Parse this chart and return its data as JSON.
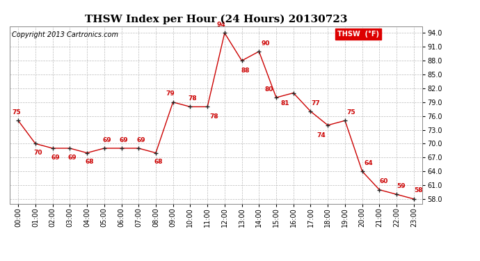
{
  "title": "THSW Index per Hour (24 Hours) 20130723",
  "copyright": "Copyright 2013 Cartronics.com",
  "legend_label": "THSW  (°F)",
  "hours": [
    0,
    1,
    2,
    3,
    4,
    5,
    6,
    7,
    8,
    9,
    10,
    11,
    12,
    13,
    14,
    15,
    16,
    17,
    18,
    19,
    20,
    21,
    22,
    23
  ],
  "x_labels": [
    "00:00",
    "01:00",
    "02:00",
    "03:00",
    "04:00",
    "05:00",
    "06:00",
    "07:00",
    "08:00",
    "09:00",
    "10:00",
    "11:00",
    "12:00",
    "13:00",
    "14:00",
    "15:00",
    "16:00",
    "17:00",
    "18:00",
    "19:00",
    "20:00",
    "21:00",
    "22:00",
    "23:00"
  ],
  "values": [
    75,
    70,
    69,
    69,
    68,
    69,
    69,
    69,
    68,
    79,
    78,
    78,
    94,
    88,
    90,
    80,
    81,
    77,
    74,
    75,
    64,
    60,
    59,
    58
  ],
  "ylim_min": 57.0,
  "ylim_max": 95.5,
  "yticks": [
    58.0,
    61.0,
    64.0,
    67.0,
    70.0,
    73.0,
    76.0,
    79.0,
    82.0,
    85.0,
    88.0,
    91.0,
    94.0
  ],
  "line_color": "#cc0000",
  "marker_color": "#222222",
  "label_color": "#cc0000",
  "grid_color": "#bbbbbb",
  "background_color": "#ffffff",
  "title_fontsize": 11,
  "copyright_fontsize": 7,
  "label_fontsize": 6.5,
  "tick_fontsize": 7,
  "legend_bg": "#dd0000",
  "legend_text_color": "#ffffff"
}
